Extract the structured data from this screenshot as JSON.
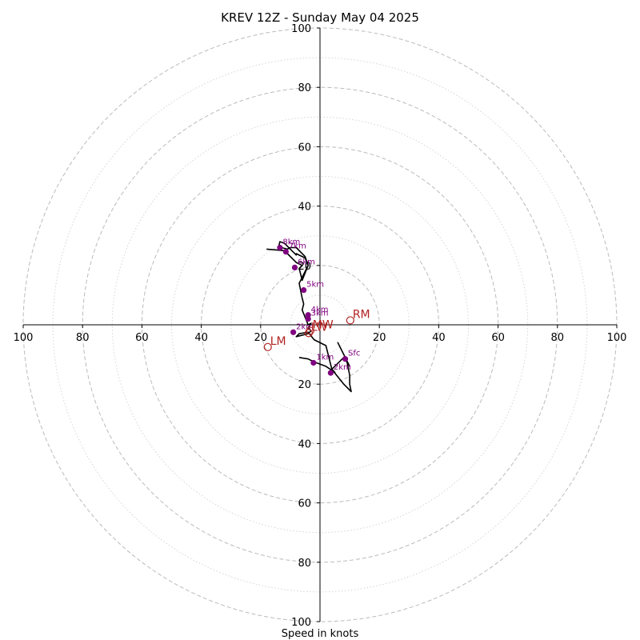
{
  "chart_data": {
    "type": "scatter",
    "subtype": "hodograph",
    "title": "KREV 12Z - Sunday May 04 2025",
    "xlabel": "Speed in knots",
    "axis_limit": 100,
    "major_rings": [
      20,
      40,
      60,
      80,
      100
    ],
    "minor_rings": [
      10,
      30,
      50,
      70,
      90
    ],
    "x_tick_labels": [
      "100",
      "80",
      "60",
      "40",
      "20",
      "20",
      "40",
      "60",
      "80",
      "100"
    ],
    "y_tick_labels": [
      "100",
      "80",
      "60",
      "40",
      "20",
      "20",
      "40",
      "60",
      "80",
      "100"
    ],
    "grid": true,
    "colors": {
      "trace": "#000000",
      "height_markers": "#800080",
      "storm_motion": "#b22222",
      "grid": "#bbbbbb",
      "minor_grid": "#d5d5d5"
    },
    "hodograph_trace": [
      {
        "u": -7,
        "v": -11
      },
      {
        "u": -4,
        "v": -11.5
      },
      {
        "u": -2,
        "v": -12.5
      },
      {
        "u": 2,
        "v": -14
      },
      {
        "u": 5,
        "v": -16
      },
      {
        "u": 4,
        "v": -15
      },
      {
        "u": 8,
        "v": -11
      },
      {
        "u": 10,
        "v": -14
      },
      {
        "u": 6,
        "v": -6
      },
      {
        "u": 8,
        "v": -10
      },
      {
        "u": 9,
        "v": -12
      },
      {
        "u": 10,
        "v": -17
      },
      {
        "u": 10,
        "v": -20
      },
      {
        "u": 10.5,
        "v": -22.5
      },
      {
        "u": 8,
        "v": -20
      },
      {
        "u": 4,
        "v": -15
      },
      {
        "u": 2,
        "v": -7
      },
      {
        "u": -2,
        "v": -5
      },
      {
        "u": -4,
        "v": -2.5
      },
      {
        "u": -7,
        "v": -3
      },
      {
        "u": -8,
        "v": -4
      },
      {
        "u": -4,
        "v": -3
      },
      {
        "u": -3,
        "v": -2
      },
      {
        "u": -4,
        "v": -1
      },
      {
        "u": -3,
        "v": 0.5
      },
      {
        "u": -4,
        "v": 0
      },
      {
        "u": -6,
        "v": 5
      },
      {
        "u": -5.5,
        "v": 7
      },
      {
        "u": -6,
        "v": 9
      },
      {
        "u": -7,
        "v": 14
      },
      {
        "u": -5,
        "v": 18
      },
      {
        "u": -4,
        "v": 20
      },
      {
        "u": -6,
        "v": 15
      },
      {
        "u": -7,
        "v": 19
      },
      {
        "u": -6,
        "v": 20
      },
      {
        "u": -8,
        "v": 21
      },
      {
        "u": -11,
        "v": 24
      },
      {
        "u": -12,
        "v": 25
      },
      {
        "u": -11,
        "v": 25.5
      },
      {
        "u": -13,
        "v": 26
      },
      {
        "u": -14,
        "v": 26
      },
      {
        "u": -13.5,
        "v": 28
      },
      {
        "u": -12,
        "v": 27.5
      },
      {
        "u": -11,
        "v": 26.5
      },
      {
        "u": -8,
        "v": 23.5
      },
      {
        "u": -8,
        "v": 24
      },
      {
        "u": -5,
        "v": 22.5
      },
      {
        "u": -4,
        "v": 20
      },
      {
        "u": -5,
        "v": 23
      },
      {
        "u": -8,
        "v": 26
      },
      {
        "u": -10,
        "v": 26
      },
      {
        "u": -12,
        "v": 25
      },
      {
        "u": -18,
        "v": 25.5
      }
    ],
    "height_markers": [
      {
        "label": "Sfc",
        "u": 8.5,
        "v": -11.5
      },
      {
        "label": "1km",
        "u": -2.2,
        "v": -12.8
      },
      {
        "label": "2km",
        "u": 3.6,
        "v": -16.2
      },
      {
        "label": "2km",
        "u": -9,
        "v": -2.5
      },
      {
        "label": "3km",
        "u": -4,
        "v": 2
      },
      {
        "label": "4km",
        "u": -4,
        "v": 3.3
      },
      {
        "label": "5km",
        "u": -5.5,
        "v": 11.7
      },
      {
        "label": "6km",
        "u": -8.5,
        "v": 19.3
      },
      {
        "label": "7km",
        "u": -11.5,
        "v": 24.6
      },
      {
        "label": "8km",
        "u": -13.5,
        "v": 26
      }
    ],
    "storm_motion": [
      {
        "label": "RM",
        "u": 10.2,
        "v": 1.5
      },
      {
        "label": "LM",
        "u": -17.6,
        "v": -7.5
      },
      {
        "label": "MW",
        "u": -3.3,
        "v": -2
      },
      {
        "label": "LW",
        "u": -3.8,
        "v": -2.8
      }
    ]
  }
}
